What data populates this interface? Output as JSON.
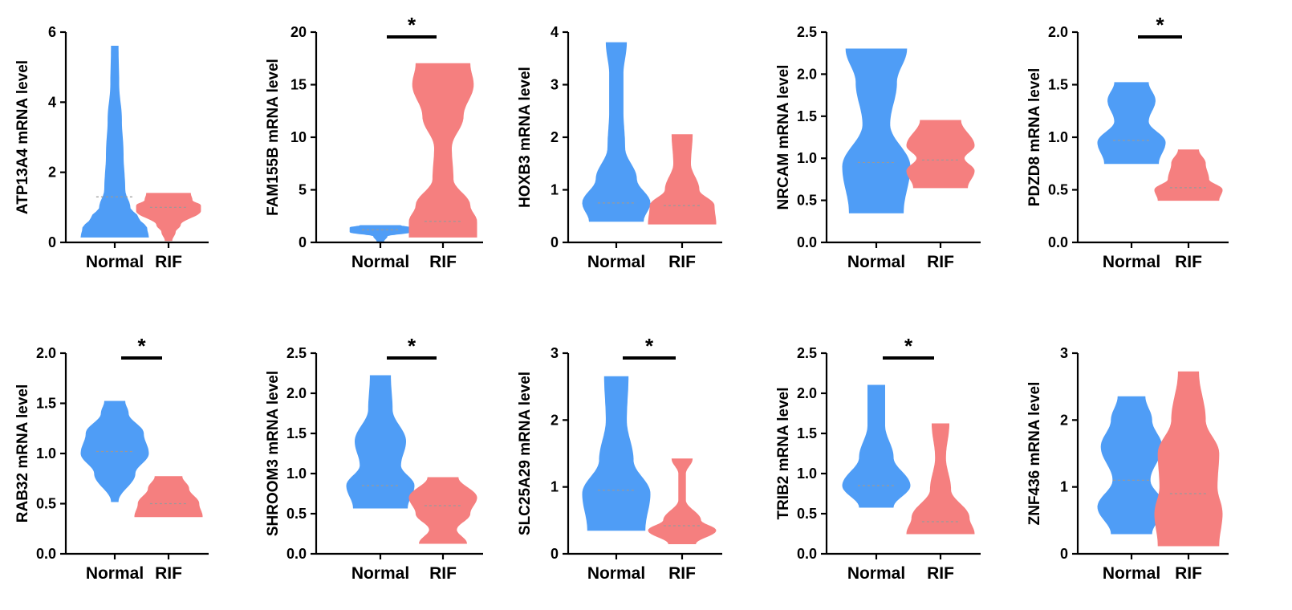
{
  "colors": {
    "normal": "#4f9df6",
    "rif": "#f57f7f",
    "median_line": "#9a9a9a",
    "axis": "#000000"
  },
  "chart_data": [
    {
      "type": "violin",
      "ylabel": "ATP13A4 mRNA level",
      "ylim": [
        0,
        6
      ],
      "yticks": [
        "0",
        "2",
        "4",
        "6"
      ],
      "categories": [
        "Normal",
        "RIF"
      ],
      "significant": false,
      "sig_label": "",
      "series": [
        {
          "name": "Normal",
          "color": "#4f9df6",
          "min": 0.15,
          "max": 5.6,
          "median": 1.3,
          "profile": [
            [
              0.15,
              1.0
            ],
            [
              0.4,
              0.95
            ],
            [
              0.7,
              0.7
            ],
            [
              1.0,
              0.45
            ],
            [
              1.5,
              0.3
            ],
            [
              2.5,
              0.25
            ],
            [
              3.5,
              0.2
            ],
            [
              4.5,
              0.12
            ],
            [
              5.6,
              0.1
            ]
          ]
        },
        {
          "name": "RIF",
          "color": "#f57f7f",
          "min": 0.05,
          "max": 1.4,
          "median": 1.0,
          "profile": [
            [
              0.05,
              0.1
            ],
            [
              0.3,
              0.2
            ],
            [
              0.5,
              0.35
            ],
            [
              0.9,
              0.95
            ],
            [
              1.05,
              0.95
            ],
            [
              1.2,
              0.7
            ],
            [
              1.4,
              0.65
            ]
          ]
        }
      ]
    },
    {
      "type": "violin",
      "ylabel": "FAM155B mRNA level",
      "ylim": [
        0,
        20
      ],
      "yticks": [
        "0",
        "5",
        "10",
        "15",
        "20"
      ],
      "categories": [
        "Normal",
        "RIF"
      ],
      "significant": true,
      "sig_label": "*",
      "series": [
        {
          "name": "Normal",
          "color": "#4f9df6",
          "min": 0.1,
          "max": 1.6,
          "median": 1.2,
          "profile": [
            [
              0.1,
              0.1
            ],
            [
              0.6,
              0.2
            ],
            [
              1.0,
              0.9
            ],
            [
              1.4,
              0.9
            ],
            [
              1.6,
              0.6
            ]
          ]
        },
        {
          "name": "RIF",
          "color": "#f57f7f",
          "min": 0.5,
          "max": 17.0,
          "median": 2.0,
          "profile": [
            [
              0.5,
              1.0
            ],
            [
              2.0,
              1.0
            ],
            [
              3.5,
              0.8
            ],
            [
              6.0,
              0.3
            ],
            [
              9.0,
              0.25
            ],
            [
              12.0,
              0.6
            ],
            [
              15.0,
              0.9
            ],
            [
              17.0,
              0.8
            ]
          ]
        }
      ]
    },
    {
      "type": "violin",
      "ylabel": "HOXB3 mRNA level",
      "ylim": [
        0,
        4
      ],
      "yticks": [
        "0",
        "1",
        "2",
        "3",
        "4"
      ],
      "categories": [
        "Normal",
        "RIF"
      ],
      "significant": false,
      "sig_label": "",
      "series": [
        {
          "name": "Normal",
          "color": "#4f9df6",
          "min": 0.4,
          "max": 3.8,
          "median": 0.75,
          "profile": [
            [
              0.4,
              0.8
            ],
            [
              0.75,
              1.0
            ],
            [
              1.2,
              0.6
            ],
            [
              1.8,
              0.25
            ],
            [
              2.5,
              0.2
            ],
            [
              3.2,
              0.2
            ],
            [
              3.8,
              0.3
            ]
          ]
        },
        {
          "name": "RIF",
          "color": "#f57f7f",
          "min": 0.35,
          "max": 2.05,
          "median": 0.7,
          "profile": [
            [
              0.35,
              1.0
            ],
            [
              0.7,
              0.95
            ],
            [
              1.0,
              0.5
            ],
            [
              1.5,
              0.25
            ],
            [
              2.05,
              0.3
            ]
          ]
        }
      ]
    },
    {
      "type": "violin",
      "ylabel": "NRCAM mRNA level",
      "ylim": [
        0,
        2.5
      ],
      "yticks": [
        "0.0",
        "0.5",
        "1.0",
        "1.5",
        "2.0",
        "2.5"
      ],
      "categories": [
        "Normal",
        "RIF"
      ],
      "significant": false,
      "sig_label": "",
      "series": [
        {
          "name": "Normal",
          "color": "#4f9df6",
          "min": 0.35,
          "max": 2.3,
          "median": 0.95,
          "profile": [
            [
              0.35,
              0.8
            ],
            [
              0.9,
              1.0
            ],
            [
              1.4,
              0.4
            ],
            [
              1.9,
              0.6
            ],
            [
              2.3,
              0.9
            ]
          ]
        },
        {
          "name": "RIF",
          "color": "#f57f7f",
          "min": 0.65,
          "max": 1.45,
          "median": 0.98,
          "profile": [
            [
              0.65,
              0.8
            ],
            [
              0.85,
              1.0
            ],
            [
              1.0,
              0.7
            ],
            [
              1.15,
              1.0
            ],
            [
              1.45,
              0.6
            ]
          ]
        }
      ]
    },
    {
      "type": "violin",
      "ylabel": "PDZD8 mRNA level",
      "ylim": [
        0,
        2.0
      ],
      "yticks": [
        "0.0",
        "0.5",
        "1.0",
        "1.5",
        "2.0"
      ],
      "categories": [
        "Normal",
        "RIF"
      ],
      "significant": true,
      "sig_label": "*",
      "series": [
        {
          "name": "Normal",
          "color": "#4f9df6",
          "min": 0.75,
          "max": 1.52,
          "median": 0.97,
          "profile": [
            [
              0.75,
              0.8
            ],
            [
              0.95,
              1.0
            ],
            [
              1.15,
              0.5
            ],
            [
              1.35,
              0.7
            ],
            [
              1.52,
              0.5
            ]
          ]
        },
        {
          "name": "RIF",
          "color": "#f57f7f",
          "min": 0.4,
          "max": 0.88,
          "median": 0.52,
          "profile": [
            [
              0.4,
              0.9
            ],
            [
              0.5,
              1.0
            ],
            [
              0.6,
              0.6
            ],
            [
              0.75,
              0.5
            ],
            [
              0.88,
              0.3
            ]
          ]
        }
      ]
    },
    {
      "type": "violin",
      "ylabel": "RAB32 mRNA level",
      "ylim": [
        0,
        2.0
      ],
      "yticks": [
        "0.0",
        "0.5",
        "1.0",
        "1.5",
        "2.0"
      ],
      "categories": [
        "Normal",
        "RIF"
      ],
      "significant": true,
      "sig_label": "*",
      "series": [
        {
          "name": "Normal",
          "color": "#4f9df6",
          "min": 0.52,
          "max": 1.52,
          "median": 1.02,
          "profile": [
            [
              0.52,
              0.1
            ],
            [
              0.8,
              0.6
            ],
            [
              1.0,
              1.0
            ],
            [
              1.2,
              0.85
            ],
            [
              1.4,
              0.4
            ],
            [
              1.52,
              0.3
            ]
          ]
        },
        {
          "name": "RIF",
          "color": "#f57f7f",
          "min": 0.37,
          "max": 0.77,
          "median": 0.5,
          "profile": [
            [
              0.37,
              1.0
            ],
            [
              0.5,
              0.9
            ],
            [
              0.65,
              0.6
            ],
            [
              0.77,
              0.4
            ]
          ]
        }
      ]
    },
    {
      "type": "violin",
      "ylabel": "SHROOM3 mRNA level",
      "ylim": [
        0,
        2.5
      ],
      "yticks": [
        "0.0",
        "0.5",
        "1.0",
        "1.5",
        "2.0",
        "2.5"
      ],
      "categories": [
        "Normal",
        "RIF"
      ],
      "significant": true,
      "sig_label": "*",
      "series": [
        {
          "name": "Normal",
          "color": "#4f9df6",
          "min": 0.57,
          "max": 2.22,
          "median": 0.85,
          "profile": [
            [
              0.57,
              0.8
            ],
            [
              0.85,
              1.0
            ],
            [
              1.1,
              0.6
            ],
            [
              1.4,
              0.75
            ],
            [
              1.8,
              0.35
            ],
            [
              2.22,
              0.3
            ]
          ]
        },
        {
          "name": "RIF",
          "color": "#f57f7f",
          "min": 0.13,
          "max": 0.95,
          "median": 0.6,
          "profile": [
            [
              0.13,
              0.7
            ],
            [
              0.3,
              0.4
            ],
            [
              0.5,
              0.8
            ],
            [
              0.7,
              1.0
            ],
            [
              0.95,
              0.45
            ]
          ]
        }
      ]
    },
    {
      "type": "violin",
      "ylabel": "SLC25A29 mRNA level",
      "ylim": [
        0,
        3
      ],
      "yticks": [
        "0",
        "1",
        "2",
        "3"
      ],
      "categories": [
        "Normal",
        "RIF"
      ],
      "significant": true,
      "sig_label": "*",
      "series": [
        {
          "name": "Normal",
          "color": "#4f9df6",
          "min": 0.35,
          "max": 2.65,
          "median": 0.95,
          "profile": [
            [
              0.35,
              0.85
            ],
            [
              0.9,
              1.0
            ],
            [
              1.4,
              0.5
            ],
            [
              2.0,
              0.3
            ],
            [
              2.65,
              0.35
            ]
          ]
        },
        {
          "name": "RIF",
          "color": "#f57f7f",
          "min": 0.15,
          "max": 1.42,
          "median": 0.42,
          "profile": [
            [
              0.15,
              0.4
            ],
            [
              0.35,
              1.0
            ],
            [
              0.5,
              0.55
            ],
            [
              0.8,
              0.1
            ],
            [
              1.2,
              0.1
            ],
            [
              1.42,
              0.3
            ]
          ]
        }
      ]
    },
    {
      "type": "violin",
      "ylabel": "TRIB2 mRNA level",
      "ylim": [
        0,
        2.5
      ],
      "yticks": [
        "0.0",
        "0.5",
        "1.0",
        "1.5",
        "2.0",
        "2.5"
      ],
      "categories": [
        "Normal",
        "RIF"
      ],
      "significant": true,
      "sig_label": "*",
      "series": [
        {
          "name": "Normal",
          "color": "#4f9df6",
          "min": 0.58,
          "max": 2.1,
          "median": 0.85,
          "profile": [
            [
              0.58,
              0.5
            ],
            [
              0.85,
              1.0
            ],
            [
              1.2,
              0.5
            ],
            [
              1.6,
              0.25
            ],
            [
              2.1,
              0.25
            ]
          ]
        },
        {
          "name": "RIF",
          "color": "#f57f7f",
          "min": 0.25,
          "max": 1.62,
          "median": 0.4,
          "profile": [
            [
              0.25,
              1.0
            ],
            [
              0.45,
              0.85
            ],
            [
              0.8,
              0.3
            ],
            [
              1.2,
              0.15
            ],
            [
              1.62,
              0.25
            ]
          ]
        }
      ]
    },
    {
      "type": "violin",
      "ylabel": "ZNF436 mRNA level",
      "ylim": [
        0,
        3
      ],
      "yticks": [
        "0",
        "1",
        "2",
        "3"
      ],
      "categories": [
        "Normal",
        "RIF"
      ],
      "significant": false,
      "sig_label": "",
      "series": [
        {
          "name": "Normal",
          "color": "#4f9df6",
          "min": 0.3,
          "max": 2.35,
          "median": 1.1,
          "profile": [
            [
              0.3,
              0.6
            ],
            [
              0.7,
              1.0
            ],
            [
              1.1,
              0.55
            ],
            [
              1.6,
              0.9
            ],
            [
              2.0,
              0.6
            ],
            [
              2.35,
              0.4
            ]
          ]
        },
        {
          "name": "RIF",
          "color": "#f57f7f",
          "min": 0.12,
          "max": 2.72,
          "median": 0.9,
          "profile": [
            [
              0.12,
              0.9
            ],
            [
              0.6,
              1.0
            ],
            [
              1.0,
              0.85
            ],
            [
              1.5,
              0.9
            ],
            [
              2.0,
              0.5
            ],
            [
              2.72,
              0.3
            ]
          ]
        }
      ]
    }
  ]
}
